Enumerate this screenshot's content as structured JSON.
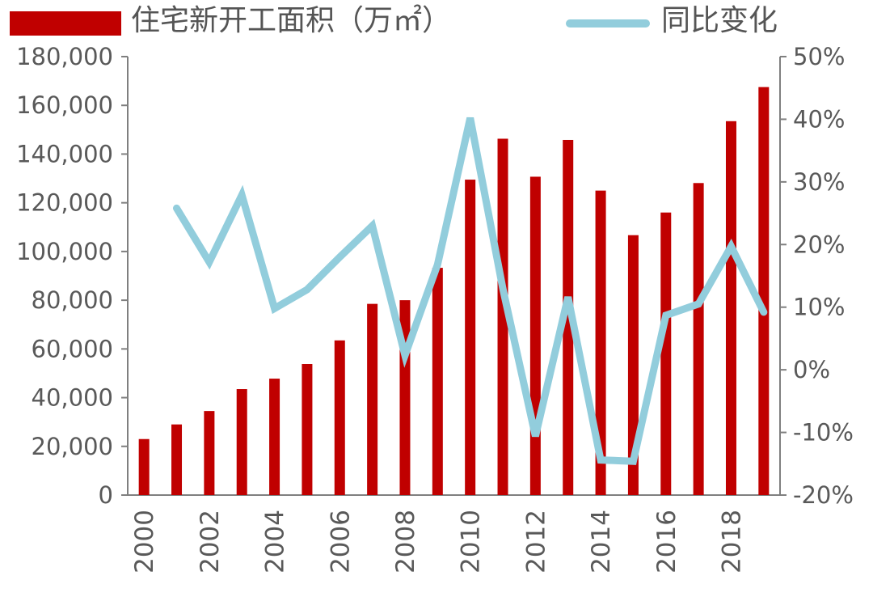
{
  "legend": {
    "bar_label": "住宅新开工面积（万㎡）",
    "line_label": "同比变化"
  },
  "colors": {
    "bar": "#C00000",
    "line": "#92CDDC",
    "axis": "#7F7F7F",
    "text": "#595959"
  },
  "chart_data": {
    "type": "bar+line",
    "categories": [
      "2000",
      "2001",
      "2002",
      "2003",
      "2004",
      "2005",
      "2006",
      "2007",
      "2008",
      "2009",
      "2010",
      "2011",
      "2012",
      "2013",
      "2014",
      "2015",
      "2016",
      "2017",
      "2018",
      "2019"
    ],
    "x_tick_labels": [
      "2000",
      "2002",
      "2004",
      "2006",
      "2008",
      "2010",
      "2012",
      "2014",
      "2016",
      "2018"
    ],
    "series": [
      {
        "name": "住宅新开工面积（万㎡）",
        "type": "bar",
        "axis": "left",
        "values": [
          23000,
          29000,
          34500,
          43500,
          47800,
          53800,
          63500,
          78500,
          80000,
          93300,
          129500,
          146300,
          130700,
          145800,
          125000,
          106700,
          116000,
          128100,
          153500,
          167500
        ]
      },
      {
        "name": "同比变化",
        "type": "line",
        "axis": "right",
        "values": [
          null,
          25.8,
          17.2,
          27.9,
          9.8,
          12.8,
          18.0,
          23.0,
          2.3,
          16.8,
          40.2,
          13.0,
          -10.6,
          11.6,
          -14.4,
          -14.6,
          8.7,
          10.5,
          19.7,
          9.2
        ]
      }
    ],
    "ylim_left": [
      0,
      180000
    ],
    "ylim_right": [
      -20,
      50
    ],
    "left_ticks": [
      "0",
      "20,000",
      "40,000",
      "60,000",
      "80,000",
      "100,000",
      "120,000",
      "140,000",
      "160,000",
      "180,000"
    ],
    "right_ticks": [
      "-20%",
      "-10%",
      "0%",
      "10%",
      "20%",
      "30%",
      "40%",
      "50%"
    ],
    "grid": false,
    "legend_position": "top"
  }
}
